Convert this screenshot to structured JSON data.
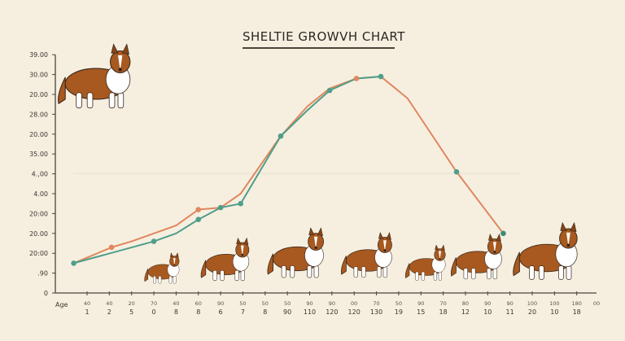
{
  "chart_data": {
    "type": "line",
    "title": "SHELTIE GROWVH CHART",
    "xlabel": "Age",
    "ylabel": "",
    "y_tick_labels": [
      "0",
      ".90",
      "20:00",
      "20.00",
      "20:00",
      "4.00",
      "4.,00",
      "35.00",
      "20.00",
      "28.00",
      "20.00",
      "30.00",
      "39.00"
    ],
    "x_tick_labels_top": [
      "40",
      "40",
      "20",
      "70",
      "40",
      "60",
      "90",
      "50",
      "50",
      "50",
      "90",
      "90",
      "00",
      "70",
      "50",
      "90",
      "70",
      "80",
      "90",
      "90",
      "100",
      "100",
      "180",
      "00"
    ],
    "x_tick_labels_bottom": [
      "1",
      "2",
      "5",
      "0",
      "8",
      "8",
      "6",
      "7",
      "8",
      "90",
      "110",
      "120",
      "120",
      "130",
      "19",
      "15",
      "18",
      "12",
      "10",
      "11",
      "20",
      "10",
      "18"
    ],
    "value_units": "tick index (axis tick labels are not monotonic)",
    "ylim": [
      0,
      12
    ],
    "grid": false,
    "legend": "none",
    "series": [
      {
        "color": "#e0875e",
        "x": [
          -0.6,
          1.1,
          2.0,
          3.0,
          4.0,
          5.0,
          6.0,
          6.9,
          8.7,
          9.9,
          10.9,
          12.1,
          13.2,
          14.4,
          16.6,
          18.7
        ],
        "y": [
          1.5,
          2.3,
          2.6,
          3.0,
          3.4,
          4.2,
          4.3,
          5.0,
          7.9,
          9.4,
          10.3,
          10.8,
          10.9,
          9.8,
          6.1,
          3.0
        ],
        "markers_at": [
          1,
          5,
          11
        ]
      },
      {
        "color": "#4f9e8a",
        "x": [
          -0.6,
          3.0,
          4.0,
          5.0,
          6.0,
          6.9,
          8.7,
          9.9,
          10.9,
          12.1,
          13.2
        ],
        "y": [
          1.5,
          2.6,
          3.0,
          3.7,
          4.3,
          4.5,
          7.9,
          9.2,
          10.2,
          10.8,
          10.9
        ],
        "markers_at": [
          0,
          1,
          3,
          4,
          5,
          6,
          8,
          10
        ]
      }
    ],
    "extra_markers": [
      {
        "x": 16.6,
        "y": 6.1,
        "color": "#4f9e8a"
      },
      {
        "x": 18.7,
        "y": 3.0,
        "color": "#3f8a78"
      }
    ],
    "colors": {
      "background": "#f6efe0",
      "axis": "#4a443c",
      "dog_fur": "#a8591f",
      "dog_white": "#ffffff"
    }
  }
}
